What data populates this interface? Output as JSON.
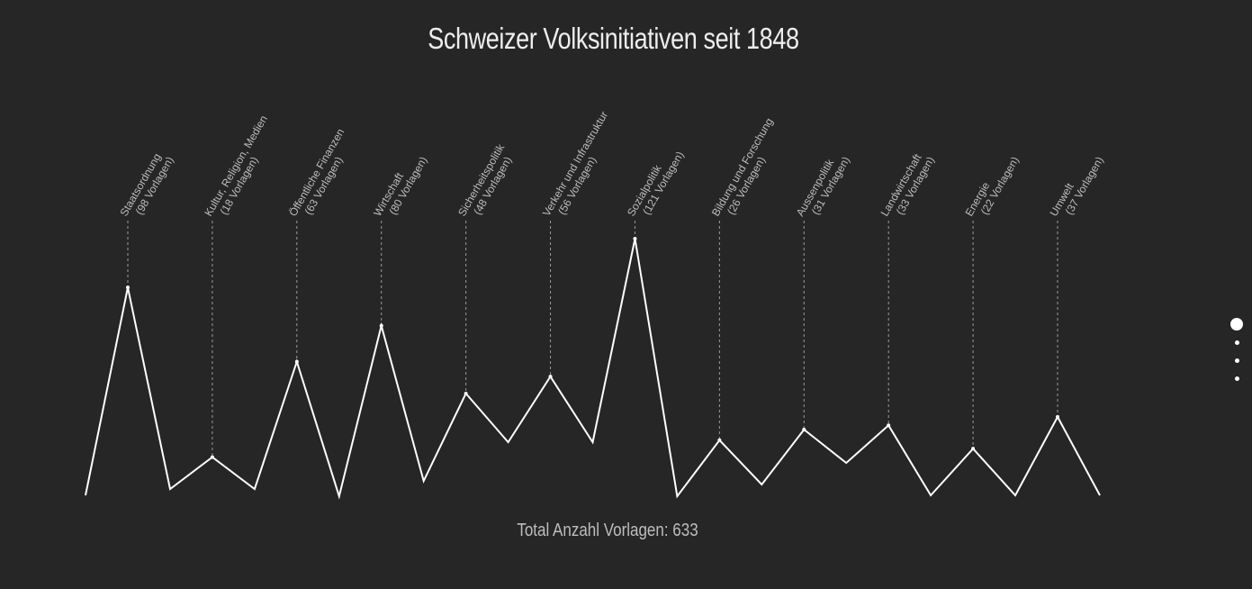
{
  "title": "Schweizer Volksinitiativen seit 1848",
  "total_label": "Total Anzahl Vorlagen: 633",
  "pager": {
    "pages": 4,
    "active": 1
  },
  "chart_data": {
    "type": "line",
    "title": "Schweizer Volksinitiativen seit 1848",
    "xlabel": "",
    "ylabel": "",
    "ylim": [
      0,
      121
    ],
    "grid": false,
    "categories": [
      {
        "name": "Staatsordnung",
        "count_label": "(98 Vorlagen)",
        "value": 98
      },
      {
        "name": "Kultur, Religion, Medien",
        "count_label": "(18 Vorlagen)",
        "value": 18
      },
      {
        "name": "Öffentliche Finanzen",
        "count_label": "(63 Vorlagen)",
        "value": 63
      },
      {
        "name": "Wirtschaft",
        "count_label": "(80 Vorlagen)",
        "value": 80
      },
      {
        "name": "Sicherheitspolitik",
        "count_label": "(48 Vorlagen)",
        "value": 48
      },
      {
        "name": "Verkehr und Infrastruktur",
        "count_label": "(56 Vorlagen)",
        "value": 56
      },
      {
        "name": "Sozialpolitik",
        "count_label": "(121 Vorlagen)",
        "value": 121
      },
      {
        "name": "Bildung und Forschung",
        "count_label": "(26 Vorlagen)",
        "value": 26
      },
      {
        "name": "Aussenpolitik",
        "count_label": "(31 Vorlagen)",
        "value": 31
      },
      {
        "name": "Landwirtschaft",
        "count_label": "(33 Vorlagen)",
        "value": 33
      },
      {
        "name": "Energie",
        "count_label": "(22 Vorlagen)",
        "value": 22
      },
      {
        "name": "Umwelt",
        "count_label": "(37 Vorlagen)",
        "value": 37
      }
    ],
    "total": 633,
    "colors": {
      "background": "#262626",
      "line": "#ffffff",
      "guide": "#9a9a9a",
      "label": "#bdbdbd"
    }
  }
}
